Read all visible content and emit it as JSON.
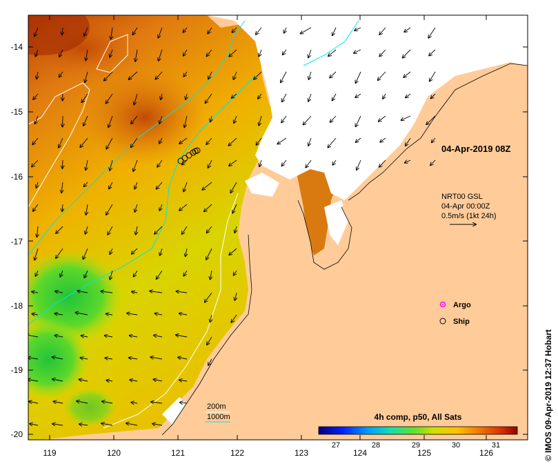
{
  "map": {
    "date_label": "04-Apr-2019 08Z",
    "current_info": {
      "line1": "NRT00 GSL",
      "line2": "04-Apr 00:00Z",
      "line3": "0.5m/s (1kt 24h)"
    },
    "bathymetry_legend": {
      "label_200m": "200m",
      "label_1000m": "1000m",
      "color_200m": "#ffffff",
      "color_1000m": "#00e5e5"
    },
    "markers_legend": {
      "argo": "Argo",
      "ship": "Ship",
      "argo_color": "#ff00ff"
    },
    "colorbar": {
      "title": "4h comp, p50, All Sats",
      "ticks": [
        "27",
        "28",
        "29",
        "30",
        "31"
      ]
    },
    "credit": "© IMOS 09-Apr-2019 12:37 Hobart",
    "axes": {
      "x_ticks": [
        "119",
        "120",
        "121",
        "122",
        "123",
        "124",
        "125",
        "126"
      ],
      "y_ticks": [
        "-14",
        "-15",
        "-16",
        "-17",
        "-18",
        "-19",
        "-20"
      ]
    },
    "colors": {
      "land": "#ffcc99",
      "cloud": "#ffffff",
      "sst_warm": "#d96a0a",
      "sst_mid": "#f0b800",
      "sst_cool": "#3ccc30"
    }
  }
}
